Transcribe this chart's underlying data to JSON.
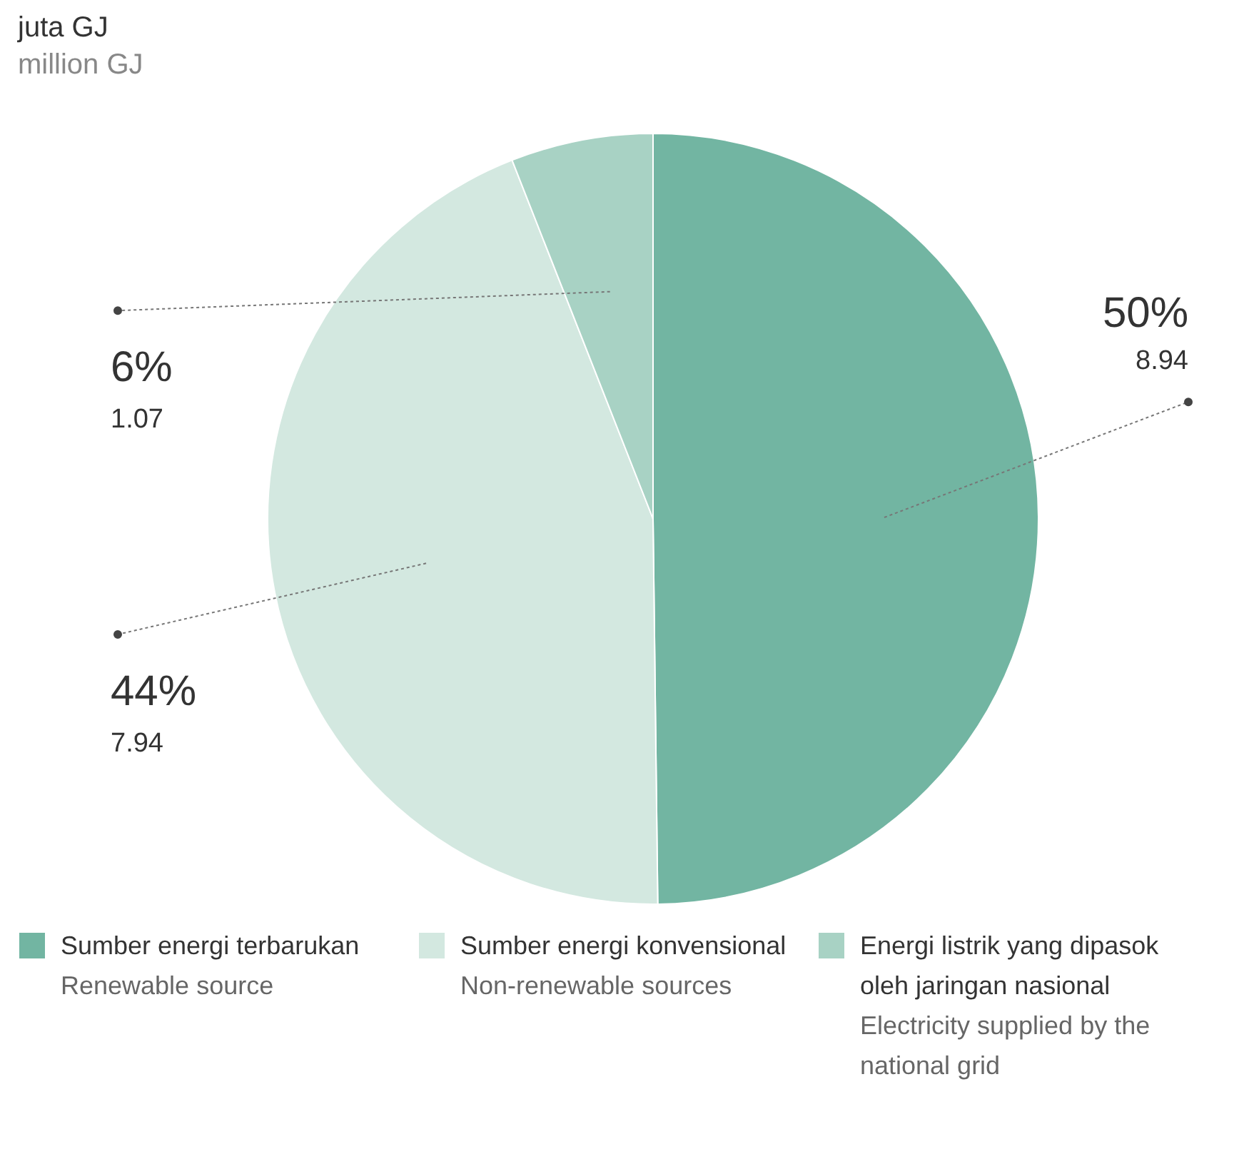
{
  "chart_data": {
    "type": "pie",
    "title": "juta GJ",
    "subtitle": "million GJ",
    "categories": [
      "Sumber energi terbarukan\nRenewable source",
      "Sumber energi konvensional\nNon-renewable sources",
      "Energi listrik yang dipasok oleh jaringan nasional\nElectricity supplied by the national grid"
    ],
    "values": [
      8.94,
      7.94,
      1.07
    ],
    "colors": [
      "#72b5a2",
      "#d3e8e0",
      "#a8d2c4"
    ],
    "value_labels": [
      "50%\n8.94",
      "44%\n7.94",
      "6%\n1.07"
    ],
    "legend": "bottom"
  }
}
